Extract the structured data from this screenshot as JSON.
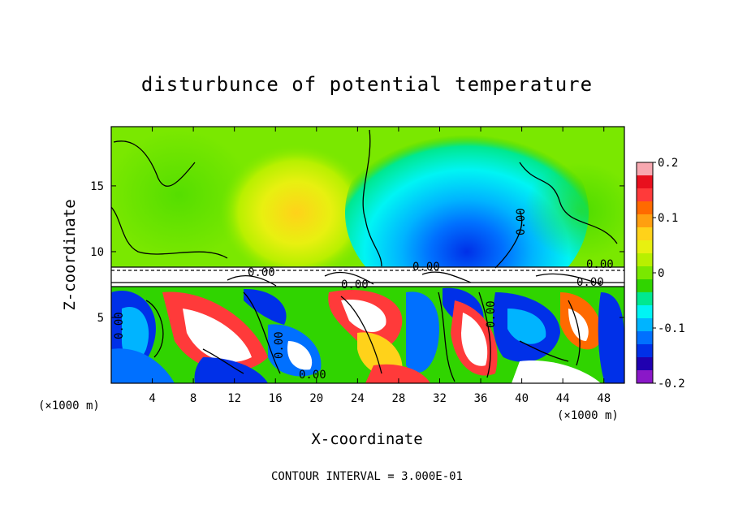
{
  "chart_data": {
    "type": "heatmap",
    "title": "disturbunce of potential temperature",
    "xlabel": "X-coordinate",
    "ylabel": "Z-coordinate",
    "x_unit": "(×1000 m)",
    "y_unit": "(×1000 m)",
    "xlim": [
      0,
      50
    ],
    "ylim": [
      0,
      19.5
    ],
    "x_ticks": [
      "4",
      "8",
      "12",
      "16",
      "20",
      "24",
      "28",
      "32",
      "36",
      "40",
      "44",
      "48"
    ],
    "x_tick_values": [
      4,
      8,
      12,
      16,
      20,
      24,
      28,
      32,
      36,
      40,
      44,
      48
    ],
    "y_ticks": [
      "5",
      "10",
      "15"
    ],
    "y_tick_values": [
      5,
      10,
      15
    ],
    "colorbar": {
      "min": -0.2,
      "max": 0.2,
      "ticks": [
        "0.2",
        "0.1",
        "0",
        "-0.1",
        "-0.2"
      ],
      "tick_values": [
        0.2,
        0.1,
        0,
        -0.1,
        -0.2
      ],
      "colors": [
        "#f7a8b0",
        "#e8101e",
        "#ff3a3a",
        "#ff6a00",
        "#ff9f10",
        "#ffd21a",
        "#e8f010",
        "#b8f000",
        "#7ae800",
        "#30d400",
        "#00e890",
        "#00f4f4",
        "#00b4ff",
        "#0070ff",
        "#0030e8",
        "#2000b0",
        "#8a18c8"
      ]
    },
    "contour_labels": [
      "0.00",
      "0.00",
      "0.00",
      "0.00",
      "0.00",
      "0.00",
      "0.00",
      "0.00",
      "0.00",
      "0.00"
    ],
    "fields": {
      "upper_layer_mean": 0.0,
      "warm_plume_x": 20,
      "warm_plume_value": 0.08,
      "cold_plume_x": 36,
      "cold_plume_value": -0.14,
      "inversion_z": 8.5
    },
    "contour_interval_text": "CONTOUR INTERVAL = 3.000E-01"
  }
}
